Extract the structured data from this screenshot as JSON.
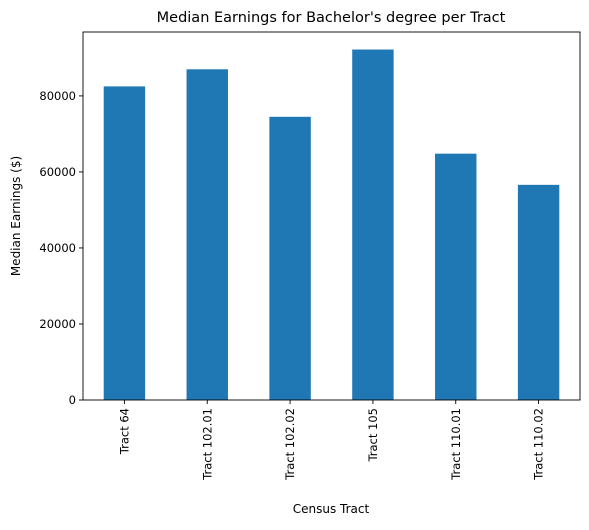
{
  "chart_data": {
    "type": "bar",
    "title": "Median Earnings for Bachelor's degree per Tract",
    "xlabel": "Census Tract",
    "ylabel": "Median Earnings ($)",
    "categories": [
      "Tract 64",
      "Tract 102.01",
      "Tract 102.02",
      "Tract 105",
      "Tract 110.01",
      "Tract 110.02"
    ],
    "values": [
      82500,
      87000,
      74500,
      92200,
      64800,
      56600
    ],
    "ylim": [
      0,
      96810
    ],
    "yticks": [
      0,
      20000,
      40000,
      60000,
      80000
    ],
    "grid": false,
    "legend": "none",
    "bar_color": "#1f77b4"
  }
}
